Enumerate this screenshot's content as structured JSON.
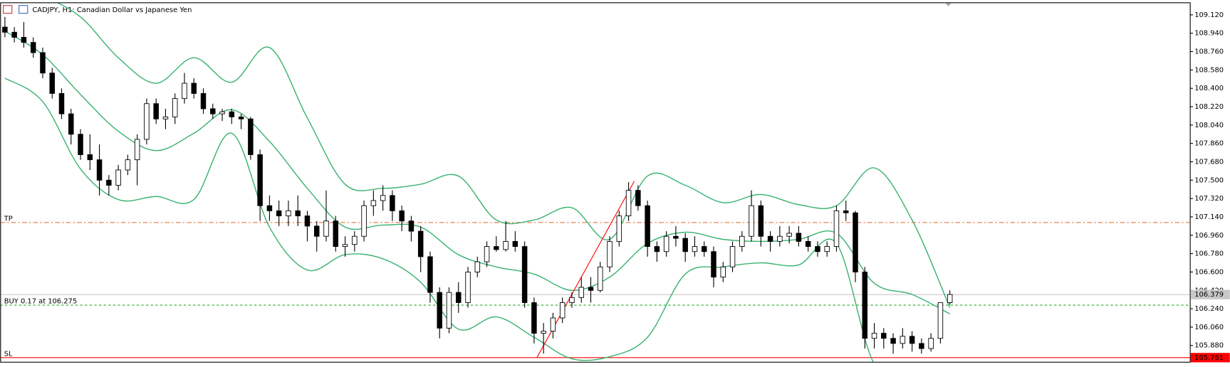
{
  "chart_data": {
    "type": "candlestick",
    "title": "CADJPY, H1:  Canadian Dollar vs Japanese Yen",
    "up_color": "#ffffff",
    "down_color": "#000000",
    "band_color": "#3cb371",
    "ylim": [
      105.72,
      109.235
    ],
    "yticks": [
      {
        "value": 109.12,
        "label": "109.120"
      },
      {
        "value": 108.94,
        "label": "108.940"
      },
      {
        "value": 108.76,
        "label": "108.760"
      },
      {
        "value": 108.58,
        "label": "108.580"
      },
      {
        "value": 108.4,
        "label": "108.400"
      },
      {
        "value": 108.22,
        "label": "108.220"
      },
      {
        "value": 108.04,
        "label": "108.040"
      },
      {
        "value": 107.86,
        "label": "107.860"
      },
      {
        "value": 107.68,
        "label": "107.680"
      },
      {
        "value": 107.5,
        "label": "107.500"
      },
      {
        "value": 107.32,
        "label": "107.320"
      },
      {
        "value": 107.14,
        "label": "107.140"
      },
      {
        "value": 106.96,
        "label": "106.960"
      },
      {
        "value": 106.78,
        "label": "106.780"
      },
      {
        "value": 106.6,
        "label": "106.600"
      },
      {
        "value": 106.42,
        "label": "106.420"
      },
      {
        "value": 106.24,
        "label": "106.240"
      },
      {
        "value": 106.06,
        "label": "106.060"
      },
      {
        "value": 105.88,
        "label": "105.880"
      }
    ],
    "candles": [
      [
        109.0,
        109.1,
        108.9,
        108.95
      ],
      [
        108.95,
        109.0,
        108.85,
        108.9
      ],
      [
        108.9,
        109.05,
        108.8,
        108.85
      ],
      [
        108.85,
        108.9,
        108.7,
        108.75
      ],
      [
        108.75,
        108.8,
        108.5,
        108.55
      ],
      [
        108.55,
        108.6,
        108.3,
        108.35
      ],
      [
        108.35,
        108.4,
        108.1,
        108.15
      ],
      [
        108.15,
        108.2,
        107.85,
        107.95
      ],
      [
        107.95,
        108.0,
        107.7,
        107.75
      ],
      [
        107.75,
        107.95,
        107.6,
        107.7
      ],
      [
        107.7,
        107.85,
        107.35,
        107.5
      ],
      [
        107.5,
        107.55,
        107.35,
        107.45
      ],
      [
        107.45,
        107.65,
        107.4,
        107.6
      ],
      [
        107.6,
        107.75,
        107.55,
        107.7
      ],
      [
        107.7,
        107.95,
        107.45,
        107.9
      ],
      [
        107.9,
        108.3,
        107.85,
        108.25
      ],
      [
        108.25,
        108.3,
        108.05,
        108.1
      ],
      [
        108.1,
        108.2,
        108.0,
        108.12
      ],
      [
        108.12,
        108.35,
        108.05,
        108.3
      ],
      [
        108.3,
        108.55,
        108.25,
        108.45
      ],
      [
        108.45,
        108.5,
        108.3,
        108.35
      ],
      [
        108.35,
        108.4,
        108.15,
        108.2
      ],
      [
        108.2,
        108.25,
        108.1,
        108.15
      ],
      [
        108.15,
        108.2,
        108.08,
        108.17
      ],
      [
        108.17,
        108.2,
        108.05,
        108.12
      ],
      [
        108.12,
        108.15,
        108.0,
        108.1
      ],
      [
        108.1,
        108.12,
        107.7,
        107.75
      ],
      [
        107.75,
        107.8,
        107.1,
        107.25
      ],
      [
        107.25,
        107.35,
        107.1,
        107.2
      ],
      [
        107.2,
        107.3,
        107.05,
        107.15
      ],
      [
        107.15,
        107.3,
        107.05,
        107.2
      ],
      [
        107.2,
        107.35,
        107.05,
        107.15
      ],
      [
        107.15,
        107.2,
        106.9,
        107.05
      ],
      [
        107.05,
        107.1,
        106.8,
        106.95
      ],
      [
        106.95,
        107.4,
        106.9,
        107.1
      ],
      [
        107.1,
        107.15,
        106.8,
        106.85
      ],
      [
        106.85,
        106.95,
        106.75,
        106.87
      ],
      [
        106.87,
        107.0,
        106.8,
        106.95
      ],
      [
        106.95,
        107.3,
        106.9,
        107.25
      ],
      [
        107.25,
        107.4,
        107.15,
        107.3
      ],
      [
        107.3,
        107.45,
        107.2,
        107.35
      ],
      [
        107.35,
        107.4,
        107.1,
        107.2
      ],
      [
        107.2,
        107.25,
        107.0,
        107.1
      ],
      [
        107.1,
        107.15,
        106.9,
        107.0
      ],
      [
        107.0,
        107.05,
        106.6,
        106.75
      ],
      [
        106.75,
        106.8,
        106.3,
        106.4
      ],
      [
        106.4,
        106.45,
        105.95,
        106.05
      ],
      [
        106.05,
        106.45,
        106.0,
        106.4
      ],
      [
        106.4,
        106.5,
        106.2,
        106.3
      ],
      [
        106.3,
        106.65,
        106.25,
        106.6
      ],
      [
        106.6,
        106.75,
        106.55,
        106.7
      ],
      [
        106.7,
        106.9,
        106.65,
        106.85
      ],
      [
        106.85,
        106.95,
        106.8,
        106.82
      ],
      [
        106.82,
        107.1,
        106.8,
        106.9
      ],
      [
        106.9,
        107.0,
        106.8,
        106.85
      ],
      [
        106.85,
        106.9,
        106.25,
        106.3
      ],
      [
        106.3,
        106.35,
        105.9,
        106.0
      ],
      [
        106.0,
        106.1,
        105.8,
        106.02
      ],
      [
        106.02,
        106.2,
        105.95,
        106.15
      ],
      [
        106.15,
        106.35,
        106.1,
        106.3
      ],
      [
        106.3,
        106.4,
        106.25,
        106.35
      ],
      [
        106.35,
        106.55,
        106.3,
        106.45
      ],
      [
        106.45,
        106.55,
        106.3,
        106.42
      ],
      [
        106.42,
        106.7,
        106.4,
        106.65
      ],
      [
        106.65,
        106.95,
        106.6,
        106.9
      ],
      [
        106.9,
        107.2,
        106.85,
        107.15
      ],
      [
        107.15,
        107.48,
        107.1,
        107.4
      ],
      [
        107.4,
        107.45,
        107.2,
        107.25
      ],
      [
        107.25,
        107.3,
        106.75,
        106.85
      ],
      [
        106.85,
        106.9,
        106.7,
        106.8
      ],
      [
        106.8,
        107.0,
        106.75,
        106.95
      ],
      [
        106.95,
        107.05,
        106.85,
        106.93
      ],
      [
        106.93,
        106.98,
        106.7,
        106.8
      ],
      [
        106.8,
        106.95,
        106.75,
        106.85
      ],
      [
        106.85,
        106.9,
        106.75,
        106.8
      ],
      [
        106.8,
        106.85,
        106.45,
        106.55
      ],
      [
        106.55,
        106.7,
        106.5,
        106.65
      ],
      [
        106.65,
        106.9,
        106.6,
        106.85
      ],
      [
        106.85,
        107.0,
        106.8,
        106.95
      ],
      [
        106.95,
        107.4,
        106.9,
        107.25
      ],
      [
        107.25,
        107.3,
        106.85,
        106.95
      ],
      [
        106.95,
        107.0,
        106.8,
        106.9
      ],
      [
        106.9,
        107.05,
        106.85,
        106.95
      ],
      [
        106.95,
        107.05,
        106.88,
        106.98
      ],
      [
        106.98,
        107.05,
        106.85,
        106.9
      ],
      [
        106.9,
        106.95,
        106.8,
        106.85
      ],
      [
        106.85,
        106.9,
        106.75,
        106.8
      ],
      [
        106.8,
        106.9,
        106.75,
        106.85
      ],
      [
        106.85,
        107.25,
        106.8,
        107.2
      ],
      [
        107.2,
        107.3,
        107.1,
        107.18
      ],
      [
        107.18,
        107.2,
        106.5,
        106.6
      ],
      [
        106.6,
        106.65,
        105.85,
        105.95
      ],
      [
        105.95,
        106.1,
        105.85,
        106.0
      ],
      [
        106.0,
        106.05,
        105.85,
        105.95
      ],
      [
        105.95,
        106.0,
        105.8,
        105.9
      ],
      [
        105.9,
        106.05,
        105.85,
        105.97
      ],
      [
        105.97,
        106.02,
        105.82,
        105.9
      ],
      [
        105.9,
        105.95,
        105.8,
        105.85
      ],
      [
        105.85,
        106.0,
        105.82,
        105.95
      ],
      [
        105.95,
        106.3,
        105.9,
        106.3
      ],
      [
        106.3,
        106.42,
        106.28,
        106.38
      ]
    ],
    "bands": {
      "x": [
        0,
        4,
        8,
        12,
        16,
        20,
        24,
        28,
        32,
        36,
        40,
        44,
        48,
        52,
        56,
        60,
        64,
        68,
        72,
        76,
        80,
        84,
        88,
        92,
        96,
        100
      ],
      "series": [
        {
          "values": [
            109.4,
            109.3,
            109.1,
            108.7,
            108.45,
            108.7,
            108.46,
            108.8,
            108.11,
            107.46,
            107.42,
            107.46,
            107.54,
            107.11,
            107.11,
            107.23,
            106.92,
            107.54,
            107.45,
            107.28,
            107.36,
            107.26,
            107.25,
            107.62,
            107.11,
            106.25
          ]
        },
        {
          "values": [
            108.96,
            108.73,
            108.34,
            107.98,
            107.79,
            107.96,
            108.19,
            107.88,
            107.42,
            107.04,
            107.06,
            107.04,
            106.77,
            106.65,
            106.58,
            106.42,
            106.55,
            106.88,
            106.99,
            106.92,
            106.9,
            106.92,
            106.98,
            106.49,
            106.38,
            106.19
          ]
        },
        {
          "values": [
            108.5,
            108.27,
            107.61,
            107.31,
            107.34,
            107.31,
            107.96,
            107.04,
            106.62,
            106.77,
            106.73,
            106.5,
            106.04,
            106.16,
            105.96,
            105.75,
            105.77,
            105.96,
            106.58,
            106.65,
            106.69,
            106.67,
            106.88,
            105.7,
            105.65,
            105.7
          ]
        }
      ]
    },
    "trendline": {
      "x": [
        56.3,
        66.6
      ],
      "values": [
        105.761,
        107.49
      ],
      "color": "#ff0000"
    },
    "levels": [
      {
        "label": "TP",
        "value": 107.085,
        "color": "#e8743b"
      },
      {
        "label": "BUY 0.17 at 106.275",
        "value": 106.275,
        "color": "#22aa22"
      },
      {
        "label": "SL",
        "value": 105.761,
        "color": "#ff0000"
      }
    ],
    "current_price": 106.379
  }
}
